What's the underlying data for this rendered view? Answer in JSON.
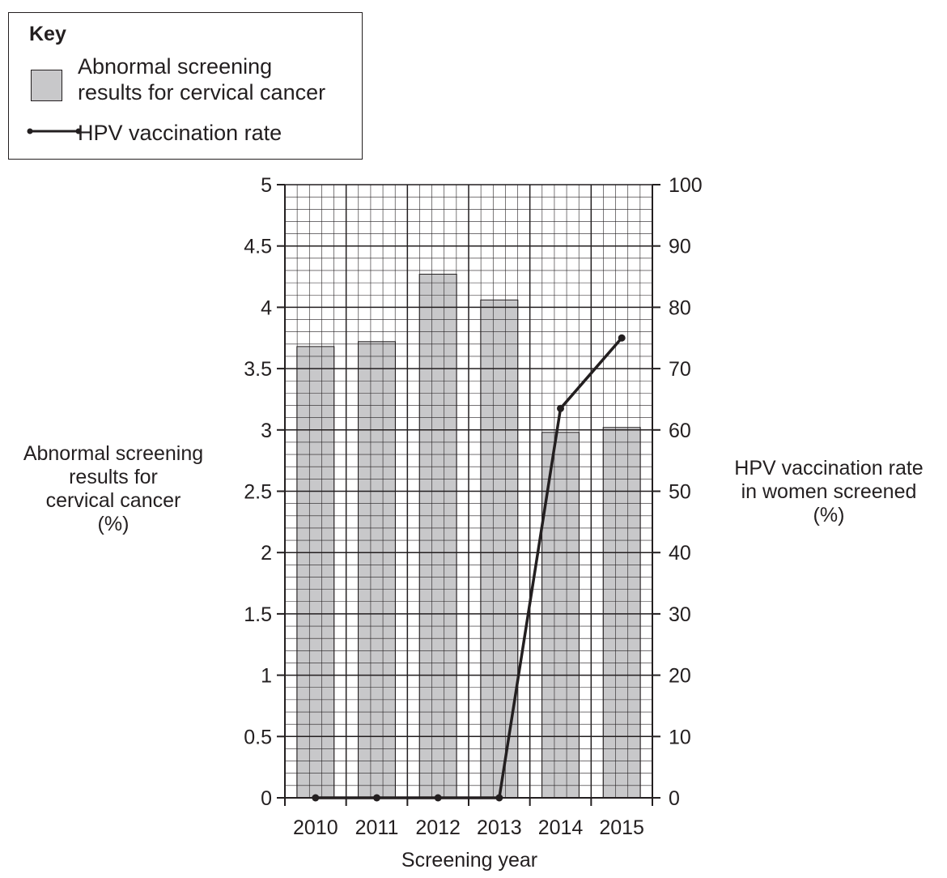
{
  "key": {
    "title": "Key",
    "bar_label": "Abnormal screening results for cervical cancer",
    "line_label": "HPV vaccination rate"
  },
  "chart_data": {
    "type": "bar",
    "categories": [
      "2010",
      "2011",
      "2012",
      "2013",
      "2014",
      "2015"
    ],
    "series": [
      {
        "name": "Abnormal screening results for cervical cancer",
        "type": "bar",
        "axis": "left",
        "values": [
          3.68,
          3.72,
          4.27,
          4.06,
          2.98,
          3.02
        ]
      },
      {
        "name": "HPV vaccination rate",
        "type": "line",
        "axis": "right",
        "values": [
          0,
          0,
          0,
          0,
          63.5,
          75
        ]
      }
    ],
    "xlabel": "Screening year",
    "ylabel": "Abnormal screening results for cervical cancer (%)",
    "y2label": "HPV vaccination rate in women screened (%)",
    "ylim": [
      0,
      5
    ],
    "y2lim": [
      0,
      100
    ],
    "yticks": [
      "0",
      "0.5",
      "1",
      "1.5",
      "2",
      "2.5",
      "3",
      "3.5",
      "4",
      "4.5",
      "5"
    ],
    "y2ticks": [
      "0",
      "10",
      "20",
      "30",
      "40",
      "50",
      "60",
      "70",
      "80",
      "90",
      "100"
    ],
    "grid": true,
    "colors": {
      "bar": "#c8c8ca",
      "line": "#231f20",
      "grid": "#231f20"
    }
  }
}
